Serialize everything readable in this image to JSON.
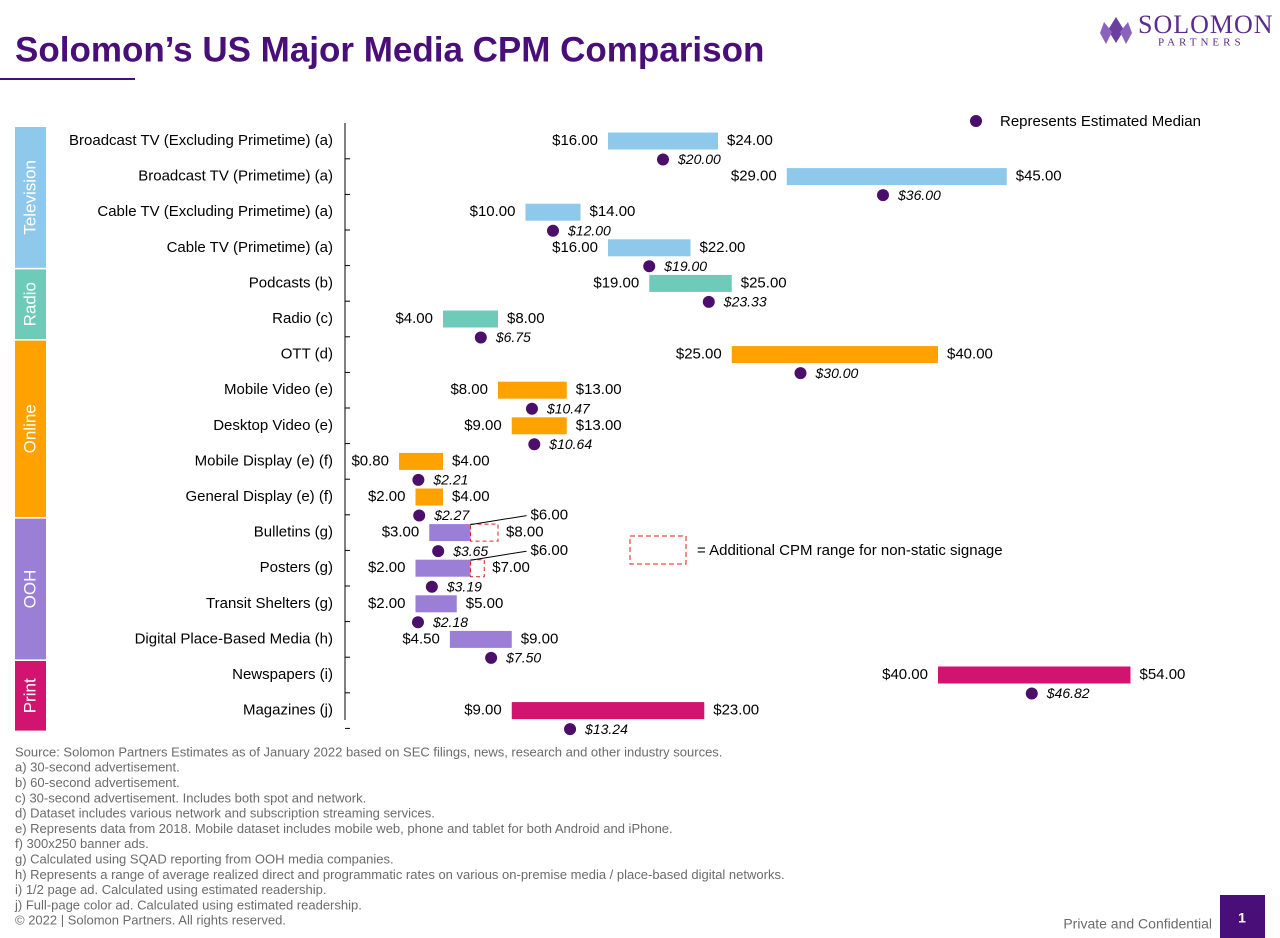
{
  "logo": {
    "name": "SOLOMON",
    "sub": "PARTNERS"
  },
  "chart_data": {
    "type": "range-bar",
    "title": "Solomon’s US Major Media CPM Comparison",
    "legend": "Represents Estimated Median",
    "median_color": "#4b0f6b",
    "extension_legend": "= Additional CPM range for non-static signage",
    "extension_color": "#e0201c",
    "xlim": [
      0,
      60
    ],
    "groups": [
      {
        "name": "Television",
        "color": "#8ec8ea",
        "rows": [
          {
            "label": "Broadcast TV (Excluding Primetime) (a)",
            "values": [
              16,
              24
            ],
            "value_labels": [
              "$16.00",
              "$24.00"
            ],
            "median": 20,
            "median_label": "$20.00"
          },
          {
            "label": "Broadcast TV (Primetime) (a)",
            "values": [
              29,
              45
            ],
            "value_labels": [
              "$29.00",
              "$45.00"
            ],
            "median": 36,
            "median_label": "$36.00"
          },
          {
            "label": "Cable TV (Excluding Primetime) (a)",
            "values": [
              10,
              14
            ],
            "value_labels": [
              "$10.00",
              "$14.00"
            ],
            "median": 12,
            "median_label": "$12.00"
          },
          {
            "label": "Cable TV (Primetime) (a)",
            "values": [
              16,
              22
            ],
            "value_labels": [
              "$16.00",
              "$22.00"
            ],
            "median": 19,
            "median_label": "$19.00"
          }
        ]
      },
      {
        "name": "Radio",
        "color": "#6fcbb9",
        "rows": [
          {
            "label": "Podcasts (b)",
            "values": [
              19,
              25
            ],
            "value_labels": [
              "$19.00",
              "$25.00"
            ],
            "median": 23.33,
            "median_label": "$23.33"
          },
          {
            "label": "Radio (c)",
            "values": [
              4,
              8
            ],
            "value_labels": [
              "$4.00",
              "$8.00"
            ],
            "median": 6.75,
            "median_label": "$6.75"
          }
        ]
      },
      {
        "name": "Online",
        "color": "#ffa200",
        "rows": [
          {
            "label": "OTT (d)",
            "values": [
              25,
              40
            ],
            "value_labels": [
              "$25.00",
              "$40.00"
            ],
            "median": 30,
            "median_label": "$30.00"
          },
          {
            "label": "Mobile Video (e)",
            "values": [
              8,
              13
            ],
            "value_labels": [
              "$8.00",
              "$13.00"
            ],
            "median": 10.47,
            "median_label": "$10.47"
          },
          {
            "label": "Desktop Video (e)",
            "values": [
              9,
              13
            ],
            "value_labels": [
              "$9.00",
              "$13.00"
            ],
            "median": 10.64,
            "median_label": "$10.64"
          },
          {
            "label": "Mobile Display (e) (f)",
            "values": [
              0.8,
              4
            ],
            "value_labels": [
              "$0.80",
              "$4.00"
            ],
            "median": 2.21,
            "median_label": "$2.21"
          },
          {
            "label": "General Display (e) (f)",
            "values": [
              2,
              4
            ],
            "value_labels": [
              "$2.00",
              "$4.00"
            ],
            "median": 2.27,
            "median_label": "$2.27"
          }
        ]
      },
      {
        "name": "OOH",
        "color": "#9b7fd6",
        "rows": [
          {
            "label": "Bulletins (g)",
            "values": [
              3,
              6
            ],
            "value_labels": [
              "$3.00",
              "$6.00"
            ],
            "extended": 8,
            "extended_label": "$8.00",
            "median": 3.65,
            "median_label": "$3.65"
          },
          {
            "label": "Posters (g)",
            "values": [
              2,
              6
            ],
            "value_labels": [
              "$2.00",
              "$6.00"
            ],
            "extended": 7,
            "extended_label": "$7.00",
            "median": 3.19,
            "median_label": "$3.19"
          },
          {
            "label": "Transit Shelters (g)",
            "values": [
              2,
              5
            ],
            "value_labels": [
              "$2.00",
              "$5.00"
            ],
            "median": 2.18,
            "median_label": "$2.18"
          },
          {
            "label": "Digital Place-Based Media (h)",
            "values": [
              4.5,
              9
            ],
            "value_labels": [
              "$4.50",
              "$9.00"
            ],
            "median": 7.5,
            "median_label": "$7.50"
          }
        ]
      },
      {
        "name": "Print",
        "color": "#d0146f",
        "rows": [
          {
            "label": "Newspapers (i)",
            "values": [
              40,
              54
            ],
            "value_labels": [
              "$40.00",
              "$54.00"
            ],
            "median": 46.82,
            "median_label": "$46.82"
          },
          {
            "label": "Magazines (j)",
            "values": [
              9,
              23
            ],
            "value_labels": [
              "$9.00",
              "$23.00"
            ],
            "median": 13.24,
            "median_label": "$13.24"
          }
        ]
      }
    ]
  },
  "notes": [
    "Source: Solomon Partners Estimates as of January 2022 based on SEC filings, news, research and other industry sources.",
    "a) 30-second advertisement.",
    "b) 60-second advertisement.",
    "c) 30-second advertisement. Includes both spot and network.",
    "d) Dataset includes various network and subscription streaming services.",
    "e) Represents data from 2018. Mobile dataset includes mobile web, phone and tablet for both Android and iPhone.",
    "f) 300x250 banner ads.",
    "g) Calculated using SQAD reporting from OOH media companies.",
    "h) Represents a range of average realized direct and programmatic rates on various on-premise media / place-based digital networks.",
    "i) 1/2 page ad. Calculated using estimated readership.",
    "j) Full-page color ad. Calculated using estimated readership.",
    "© 2022 | Solomon Partners. All rights reserved."
  ],
  "footer": {
    "confidential": "Private and Confidential",
    "page": "1"
  }
}
